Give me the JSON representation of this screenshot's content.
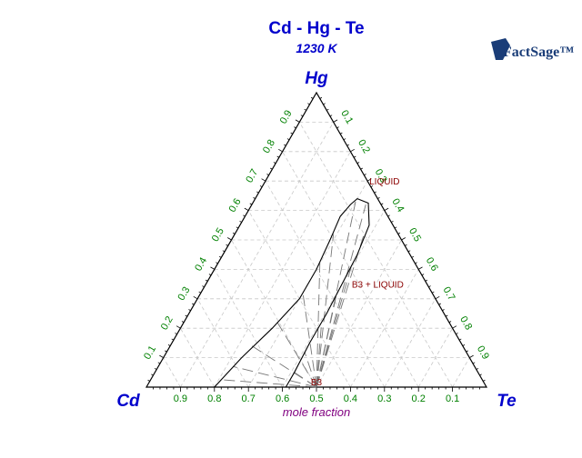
{
  "chart_data": {
    "type": "ternary",
    "title": "Cd - Hg - Te",
    "subtitle": "1230 K",
    "axis_caption": "mole fraction",
    "logo_text": "FactSage™",
    "apex_labels": {
      "top": "Hg",
      "left": "Cd",
      "right": "Te"
    },
    "ticks": [
      "0.1",
      "0.2",
      "0.3",
      "0.4",
      "0.5",
      "0.6",
      "0.7",
      "0.8",
      "0.9"
    ],
    "grid": true,
    "colors": {
      "title": "#0000cc",
      "ticks": "#008000",
      "regions": "#8b0000",
      "caption": "#800080"
    },
    "regions": [
      {
        "label": "LIQUID",
        "Hg": 0.7,
        "Te": 0.35
      },
      {
        "label": "B3 + LIQUID",
        "Hg": 0.35,
        "Te": 0.505
      },
      {
        "label": "B3",
        "Hg": 0.0,
        "Te": 0.5
      }
    ],
    "phase_boundary": [
      {
        "Hg": 0.0,
        "Te": 0.2
      },
      {
        "Hg": 0.1,
        "Te": 0.23
      },
      {
        "Hg": 0.2,
        "Te": 0.27
      },
      {
        "Hg": 0.3,
        "Te": 0.3
      },
      {
        "Hg": 0.4,
        "Te": 0.3
      },
      {
        "Hg": 0.5,
        "Te": 0.29
      },
      {
        "Hg": 0.58,
        "Te": 0.28
      },
      {
        "Hg": 0.62,
        "Te": 0.29
      },
      {
        "Hg": 0.64,
        "Te": 0.3
      },
      {
        "Hg": 0.625,
        "Te": 0.34
      },
      {
        "Hg": 0.55,
        "Te": 0.38
      },
      {
        "Hg": 0.45,
        "Te": 0.395
      },
      {
        "Hg": 0.35,
        "Te": 0.4
      },
      {
        "Hg": 0.25,
        "Te": 0.405
      },
      {
        "Hg": 0.15,
        "Te": 0.405
      },
      {
        "Hg": 0.05,
        "Te": 0.41
      },
      {
        "Hg": 0.0,
        "Te": 0.41
      }
    ],
    "tie_lines_end": [
      {
        "Hg": 0.025,
        "Te": 0.21
      },
      {
        "Hg": 0.07,
        "Te": 0.22
      },
      {
        "Hg": 0.14,
        "Te": 0.24
      },
      {
        "Hg": 0.22,
        "Te": 0.275
      },
      {
        "Hg": 0.32,
        "Te": 0.3
      },
      {
        "Hg": 0.42,
        "Te": 0.3
      },
      {
        "Hg": 0.52,
        "Te": 0.29
      },
      {
        "Hg": 0.63,
        "Te": 0.3
      },
      {
        "Hg": 0.62,
        "Te": 0.335
      },
      {
        "Hg": 0.52,
        "Te": 0.38
      },
      {
        "Hg": 0.42,
        "Te": 0.395
      },
      {
        "Hg": 0.32,
        "Te": 0.4
      },
      {
        "Hg": 0.22,
        "Te": 0.405
      },
      {
        "Hg": 0.12,
        "Te": 0.405
      },
      {
        "Hg": 0.05,
        "Te": 0.41
      }
    ],
    "tie_lines_origin": {
      "Hg": 0.0,
      "Te": 0.5
    }
  }
}
